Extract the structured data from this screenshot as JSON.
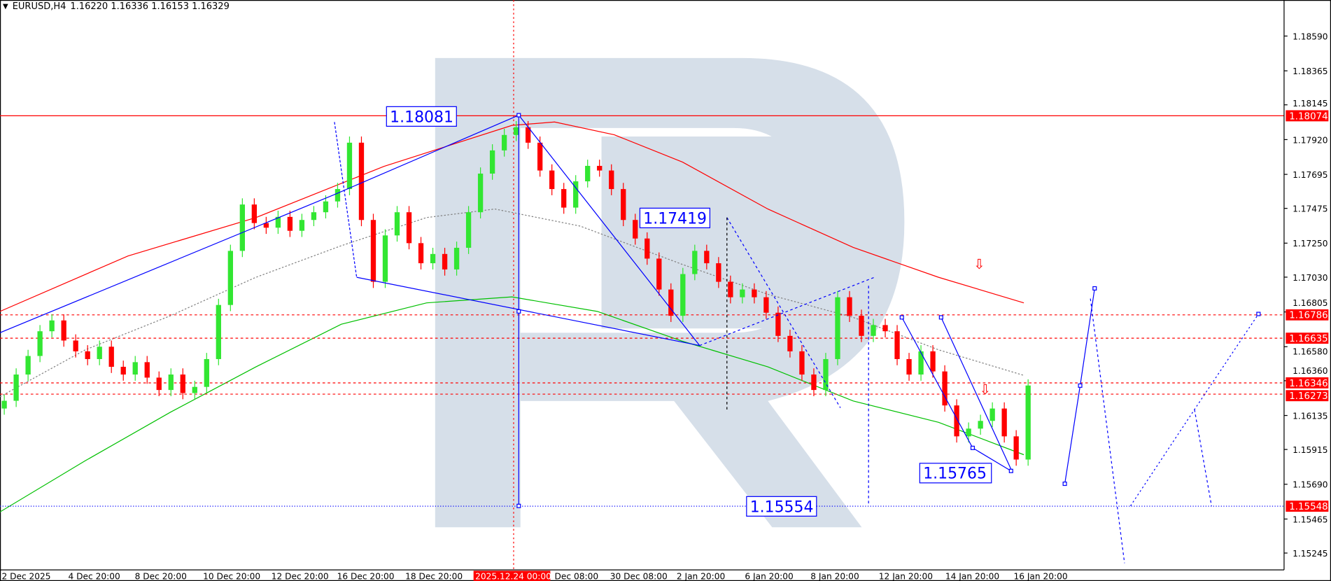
{
  "header": {
    "menu_icon": "triangle-down-icon",
    "symbol": "EURUSD,H4",
    "ohlc": "1.16220 1.16336 1.16153 1.16329"
  },
  "colors": {
    "up": "#32e632",
    "down": "#ff0000",
    "ma_slow": "#ff0000",
    "ma_mid": "#00c000",
    "ma_fast": "#808080",
    "annotation": "#0000ff",
    "level": "#ff0000",
    "watermark": "#d6dfe9"
  },
  "chart_data": {
    "type": "candlestick",
    "symbol": "EURUSD",
    "timeframe": "H4",
    "ylim": [
      1.1515,
      1.187
    ],
    "y_ticks": [
      "1.18590",
      "1.18365",
      "1.18145",
      "1.17920",
      "1.17695",
      "1.17475",
      "1.17250",
      "1.17030",
      "1.16805",
      "1.16580",
      "1.16360",
      "1.16135",
      "1.15915",
      "1.15690",
      "1.15465",
      "1.15245"
    ],
    "x_ticks": [
      "2 Dec 2025",
      "4 Dec 20:00",
      "8 Dec 20:00",
      "10 Dec 20:00",
      "12 Dec 20:00",
      "16 Dec 20:00",
      "18 Dec 20:00",
      "2025.12.24 00:00",
      "Dec 08:00",
      "30 Dec 08:00",
      "2 Jan 20:00",
      "6 Jan 20:00",
      "8 Jan 20:00",
      "12 Jan 20:00",
      "14 Jan 20:00",
      "16 Jan 20:00"
    ],
    "highlighted_x_tick": "2025.12.24 00:00",
    "closes": [
      1.1623,
      1.164,
      1.1652,
      1.1668,
      1.1675,
      1.1662,
      1.1655,
      1.165,
      1.1658,
      1.1645,
      1.164,
      1.1648,
      1.1638,
      1.163,
      1.164,
      1.1628,
      1.1632,
      1.165,
      1.1685,
      1.172,
      1.175,
      1.1738,
      1.1735,
      1.1742,
      1.1733,
      1.174,
      1.1745,
      1.1752,
      1.176,
      1.179,
      1.174,
      1.17,
      1.173,
      1.1745,
      1.1725,
      1.1712,
      1.1718,
      1.1708,
      1.1722,
      1.1745,
      1.177,
      1.1785,
      1.1795,
      1.18,
      1.179,
      1.1772,
      1.176,
      1.1748,
      1.1765,
      1.1775,
      1.1772,
      1.176,
      1.174,
      1.1728,
      1.1715,
      1.1695,
      1.1678,
      1.1705,
      1.172,
      1.1712,
      1.17,
      1.169,
      1.1695,
      1.169,
      1.168,
      1.1665,
      1.1655,
      1.164,
      1.163,
      1.165,
      1.169,
      1.1678,
      1.1665,
      1.1672,
      1.1668,
      1.165,
      1.164,
      1.1655,
      1.1642,
      1.162,
      1.16,
      1.1605,
      1.161,
      1.1618,
      1.16,
      1.1585,
      1.16329
    ],
    "levels": [
      {
        "price": 1.18074,
        "label": "1.18074",
        "style": "solid"
      },
      {
        "price": 1.16786,
        "label": "1.16786",
        "style": "dashed"
      },
      {
        "price": 1.16635,
        "label": "1.16635",
        "style": "dashed"
      },
      {
        "price": 1.16346,
        "label": "1.16346",
        "style": "dashed"
      },
      {
        "price": 1.16273,
        "label": "1.16273",
        "style": "dashed"
      },
      {
        "price": 1.15548,
        "label": "1.15548",
        "style": "dotted-blue"
      }
    ],
    "annotations": [
      "1.18081",
      "1.17419",
      "1.15765",
      "1.15554"
    ],
    "arrows": [
      "down-arrow-icon",
      "down-arrow-icon"
    ]
  }
}
